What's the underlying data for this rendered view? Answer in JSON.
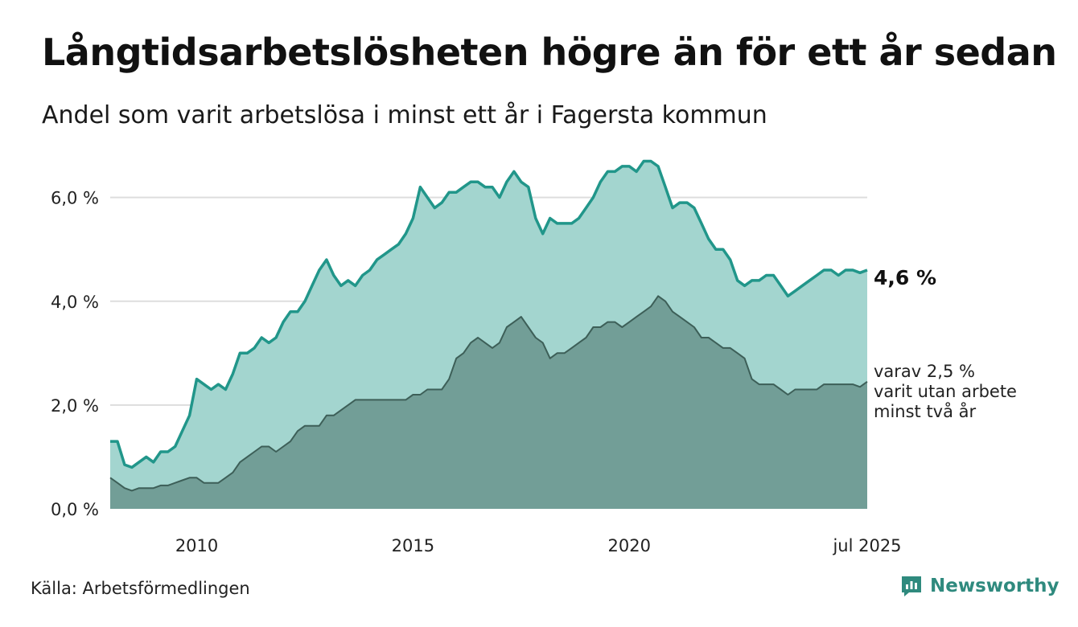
{
  "header": {
    "title": "Långtidsarbetslösheten högre än för ett år sedan",
    "subtitle": "Andel som varit arbetslösa i minst ett år i Fagersta kommun"
  },
  "footer": {
    "source": "Källa: Arbetsförmedlingen",
    "brand": "Newsworthy"
  },
  "end_labels": {
    "main": "4,6 %",
    "sub_line1": "varav 2,5 %",
    "sub_line2": "varit utan arbete",
    "sub_line3": "minst två år"
  },
  "colors": {
    "series_main_line": "#21968a",
    "series_main_fill": "#a3d5cf",
    "series_sub_line": "#3d5f58",
    "series_sub_fill": "#729e97",
    "grid": "#dddddd",
    "brand": "#2f8a7e"
  },
  "chart_data": {
    "type": "area",
    "title": "Långtidsarbetslösheten högre än för ett år sedan",
    "subtitle": "Andel som varit arbetslösa i minst ett år i Fagersta kommun",
    "xlabel": "",
    "ylabel": "",
    "xlim": [
      "2008-01",
      "2025-07"
    ],
    "ylim": [
      0,
      6.8
    ],
    "y_ticks": [
      0,
      2,
      4,
      6
    ],
    "y_tick_labels": [
      "0,0 %",
      "2,0 %",
      "4,0 %",
      "6,0 %"
    ],
    "x_ticks": [
      "2010-01",
      "2015-01",
      "2020-01",
      "2025-07"
    ],
    "x_tick_labels": [
      "2010",
      "2015",
      "2020",
      "jul 2025"
    ],
    "grid": true,
    "series": [
      {
        "name": "Arbetslösa i minst ett år",
        "points": [
          [
            "2008-01",
            1.3
          ],
          [
            "2008-03",
            1.3
          ],
          [
            "2008-05",
            0.85
          ],
          [
            "2008-07",
            0.8
          ],
          [
            "2008-09",
            0.9
          ],
          [
            "2008-11",
            1.0
          ],
          [
            "2009-01",
            0.9
          ],
          [
            "2009-03",
            1.1
          ],
          [
            "2009-05",
            1.1
          ],
          [
            "2009-07",
            1.2
          ],
          [
            "2009-09",
            1.5
          ],
          [
            "2009-11",
            1.8
          ],
          [
            "2010-01",
            2.5
          ],
          [
            "2010-03",
            2.4
          ],
          [
            "2010-05",
            2.3
          ],
          [
            "2010-07",
            2.4
          ],
          [
            "2010-09",
            2.3
          ],
          [
            "2010-11",
            2.6
          ],
          [
            "2011-01",
            3.0
          ],
          [
            "2011-03",
            3.0
          ],
          [
            "2011-05",
            3.1
          ],
          [
            "2011-07",
            3.3
          ],
          [
            "2011-09",
            3.2
          ],
          [
            "2011-11",
            3.3
          ],
          [
            "2012-01",
            3.6
          ],
          [
            "2012-03",
            3.8
          ],
          [
            "2012-05",
            3.8
          ],
          [
            "2012-07",
            4.0
          ],
          [
            "2012-09",
            4.3
          ],
          [
            "2012-11",
            4.6
          ],
          [
            "2013-01",
            4.8
          ],
          [
            "2013-03",
            4.5
          ],
          [
            "2013-05",
            4.3
          ],
          [
            "2013-07",
            4.4
          ],
          [
            "2013-09",
            4.3
          ],
          [
            "2013-11",
            4.5
          ],
          [
            "2014-01",
            4.6
          ],
          [
            "2014-03",
            4.8
          ],
          [
            "2014-05",
            4.9
          ],
          [
            "2014-07",
            5.0
          ],
          [
            "2014-09",
            5.1
          ],
          [
            "2014-11",
            5.3
          ],
          [
            "2015-01",
            5.6
          ],
          [
            "2015-03",
            6.2
          ],
          [
            "2015-05",
            6.0
          ],
          [
            "2015-07",
            5.8
          ],
          [
            "2015-09",
            5.9
          ],
          [
            "2015-11",
            6.1
          ],
          [
            "2016-01",
            6.1
          ],
          [
            "2016-03",
            6.2
          ],
          [
            "2016-05",
            6.3
          ],
          [
            "2016-07",
            6.3
          ],
          [
            "2016-09",
            6.2
          ],
          [
            "2016-11",
            6.2
          ],
          [
            "2017-01",
            6.0
          ],
          [
            "2017-03",
            6.3
          ],
          [
            "2017-05",
            6.5
          ],
          [
            "2017-07",
            6.3
          ],
          [
            "2017-09",
            6.2
          ],
          [
            "2017-11",
            5.6
          ],
          [
            "2018-01",
            5.3
          ],
          [
            "2018-03",
            5.6
          ],
          [
            "2018-05",
            5.5
          ],
          [
            "2018-07",
            5.5
          ],
          [
            "2018-09",
            5.5
          ],
          [
            "2018-11",
            5.6
          ],
          [
            "2019-01",
            5.8
          ],
          [
            "2019-03",
            6.0
          ],
          [
            "2019-05",
            6.3
          ],
          [
            "2019-07",
            6.5
          ],
          [
            "2019-09",
            6.5
          ],
          [
            "2019-11",
            6.6
          ],
          [
            "2020-01",
            6.6
          ],
          [
            "2020-03",
            6.5
          ],
          [
            "2020-05",
            6.7
          ],
          [
            "2020-07",
            6.7
          ],
          [
            "2020-09",
            6.6
          ],
          [
            "2020-11",
            6.2
          ],
          [
            "2021-01",
            5.8
          ],
          [
            "2021-03",
            5.9
          ],
          [
            "2021-05",
            5.9
          ],
          [
            "2021-07",
            5.8
          ],
          [
            "2021-09",
            5.5
          ],
          [
            "2021-11",
            5.2
          ],
          [
            "2022-01",
            5.0
          ],
          [
            "2022-03",
            5.0
          ],
          [
            "2022-05",
            4.8
          ],
          [
            "2022-07",
            4.4
          ],
          [
            "2022-09",
            4.3
          ],
          [
            "2022-11",
            4.4
          ],
          [
            "2023-01",
            4.4
          ],
          [
            "2023-03",
            4.5
          ],
          [
            "2023-05",
            4.5
          ],
          [
            "2023-07",
            4.3
          ],
          [
            "2023-09",
            4.1
          ],
          [
            "2023-11",
            4.2
          ],
          [
            "2024-01",
            4.3
          ],
          [
            "2024-03",
            4.4
          ],
          [
            "2024-05",
            4.5
          ],
          [
            "2024-07",
            4.6
          ],
          [
            "2024-09",
            4.6
          ],
          [
            "2024-11",
            4.5
          ],
          [
            "2025-01",
            4.6
          ],
          [
            "2025-03",
            4.6
          ],
          [
            "2025-05",
            4.55
          ],
          [
            "2025-07",
            4.6
          ]
        ]
      },
      {
        "name": "varav varit utan arbete minst två år",
        "points": [
          [
            "2008-01",
            0.6
          ],
          [
            "2008-03",
            0.5
          ],
          [
            "2008-05",
            0.4
          ],
          [
            "2008-07",
            0.35
          ],
          [
            "2008-09",
            0.4
          ],
          [
            "2008-11",
            0.4
          ],
          [
            "2009-01",
            0.4
          ],
          [
            "2009-03",
            0.45
          ],
          [
            "2009-05",
            0.45
          ],
          [
            "2009-07",
            0.5
          ],
          [
            "2009-09",
            0.55
          ],
          [
            "2009-11",
            0.6
          ],
          [
            "2010-01",
            0.6
          ],
          [
            "2010-03",
            0.5
          ],
          [
            "2010-05",
            0.5
          ],
          [
            "2010-07",
            0.5
          ],
          [
            "2010-09",
            0.6
          ],
          [
            "2010-11",
            0.7
          ],
          [
            "2011-01",
            0.9
          ],
          [
            "2011-03",
            1.0
          ],
          [
            "2011-05",
            1.1
          ],
          [
            "2011-07",
            1.2
          ],
          [
            "2011-09",
            1.2
          ],
          [
            "2011-11",
            1.1
          ],
          [
            "2012-01",
            1.2
          ],
          [
            "2012-03",
            1.3
          ],
          [
            "2012-05",
            1.5
          ],
          [
            "2012-07",
            1.6
          ],
          [
            "2012-09",
            1.6
          ],
          [
            "2012-11",
            1.6
          ],
          [
            "2013-01",
            1.8
          ],
          [
            "2013-03",
            1.8
          ],
          [
            "2013-05",
            1.9
          ],
          [
            "2013-07",
            2.0
          ],
          [
            "2013-09",
            2.1
          ],
          [
            "2013-11",
            2.1
          ],
          [
            "2014-01",
            2.1
          ],
          [
            "2014-03",
            2.1
          ],
          [
            "2014-05",
            2.1
          ],
          [
            "2014-07",
            2.1
          ],
          [
            "2014-09",
            2.1
          ],
          [
            "2014-11",
            2.1
          ],
          [
            "2015-01",
            2.2
          ],
          [
            "2015-03",
            2.2
          ],
          [
            "2015-05",
            2.3
          ],
          [
            "2015-07",
            2.3
          ],
          [
            "2015-09",
            2.3
          ],
          [
            "2015-11",
            2.5
          ],
          [
            "2016-01",
            2.9
          ],
          [
            "2016-03",
            3.0
          ],
          [
            "2016-05",
            3.2
          ],
          [
            "2016-07",
            3.3
          ],
          [
            "2016-09",
            3.2
          ],
          [
            "2016-11",
            3.1
          ],
          [
            "2017-01",
            3.2
          ],
          [
            "2017-03",
            3.5
          ],
          [
            "2017-05",
            3.6
          ],
          [
            "2017-07",
            3.7
          ],
          [
            "2017-09",
            3.5
          ],
          [
            "2017-11",
            3.3
          ],
          [
            "2018-01",
            3.2
          ],
          [
            "2018-03",
            2.9
          ],
          [
            "2018-05",
            3.0
          ],
          [
            "2018-07",
            3.0
          ],
          [
            "2018-09",
            3.1
          ],
          [
            "2018-11",
            3.2
          ],
          [
            "2019-01",
            3.3
          ],
          [
            "2019-03",
            3.5
          ],
          [
            "2019-05",
            3.5
          ],
          [
            "2019-07",
            3.6
          ],
          [
            "2019-09",
            3.6
          ],
          [
            "2019-11",
            3.5
          ],
          [
            "2020-01",
            3.6
          ],
          [
            "2020-03",
            3.7
          ],
          [
            "2020-05",
            3.8
          ],
          [
            "2020-07",
            3.9
          ],
          [
            "2020-09",
            4.1
          ],
          [
            "2020-11",
            4.0
          ],
          [
            "2021-01",
            3.8
          ],
          [
            "2021-03",
            3.7
          ],
          [
            "2021-05",
            3.6
          ],
          [
            "2021-07",
            3.5
          ],
          [
            "2021-09",
            3.3
          ],
          [
            "2021-11",
            3.3
          ],
          [
            "2022-01",
            3.2
          ],
          [
            "2022-03",
            3.1
          ],
          [
            "2022-05",
            3.1
          ],
          [
            "2022-07",
            3.0
          ],
          [
            "2022-09",
            2.9
          ],
          [
            "2022-11",
            2.5
          ],
          [
            "2023-01",
            2.4
          ],
          [
            "2023-03",
            2.4
          ],
          [
            "2023-05",
            2.4
          ],
          [
            "2023-07",
            2.3
          ],
          [
            "2023-09",
            2.2
          ],
          [
            "2023-11",
            2.3
          ],
          [
            "2024-01",
            2.3
          ],
          [
            "2024-03",
            2.3
          ],
          [
            "2024-05",
            2.3
          ],
          [
            "2024-07",
            2.4
          ],
          [
            "2024-09",
            2.4
          ],
          [
            "2024-11",
            2.4
          ],
          [
            "2025-01",
            2.4
          ],
          [
            "2025-03",
            2.4
          ],
          [
            "2025-05",
            2.35
          ],
          [
            "2025-07",
            2.45
          ]
        ]
      }
    ]
  }
}
